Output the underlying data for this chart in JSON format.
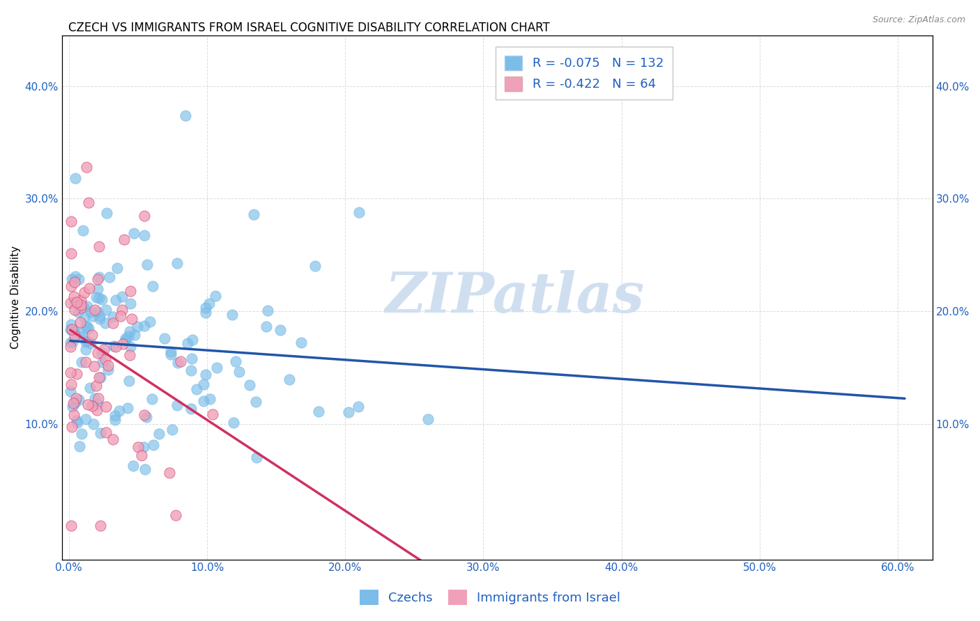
{
  "title": "CZECH VS IMMIGRANTS FROM ISRAEL COGNITIVE DISABILITY CORRELATION CHART",
  "source": "Source: ZipAtlas.com",
  "xlabel_ticks": [
    "0.0%",
    "10.0%",
    "20.0%",
    "30.0%",
    "40.0%",
    "50.0%",
    "60.0%"
  ],
  "xlabel_vals": [
    0.0,
    0.1,
    0.2,
    0.3,
    0.4,
    0.5,
    0.6
  ],
  "ylabel_ticks": [
    "10.0%",
    "20.0%",
    "30.0%",
    "40.0%"
  ],
  "ylabel_vals": [
    0.1,
    0.2,
    0.3,
    0.4
  ],
  "xlim": [
    -0.005,
    0.625
  ],
  "ylim": [
    -0.02,
    0.445
  ],
  "ylabel": "Cognitive Disability",
  "legend_labels": [
    "Czechs",
    "Immigrants from Israel"
  ],
  "czech_R": -0.075,
  "czech_N": 132,
  "israel_R": -0.422,
  "israel_N": 64,
  "czech_color": "#7bbde8",
  "czech_line_color": "#2255aa",
  "israel_color": "#f0a0b8",
  "israel_line_color": "#d03060",
  "legend_color": "#2060c0",
  "background_color": "#ffffff",
  "grid_color": "#cccccc",
  "watermark": "ZIPatlas",
  "watermark_color": "#d0dff0",
  "title_fontsize": 12,
  "axis_label_fontsize": 11,
  "tick_fontsize": 11
}
